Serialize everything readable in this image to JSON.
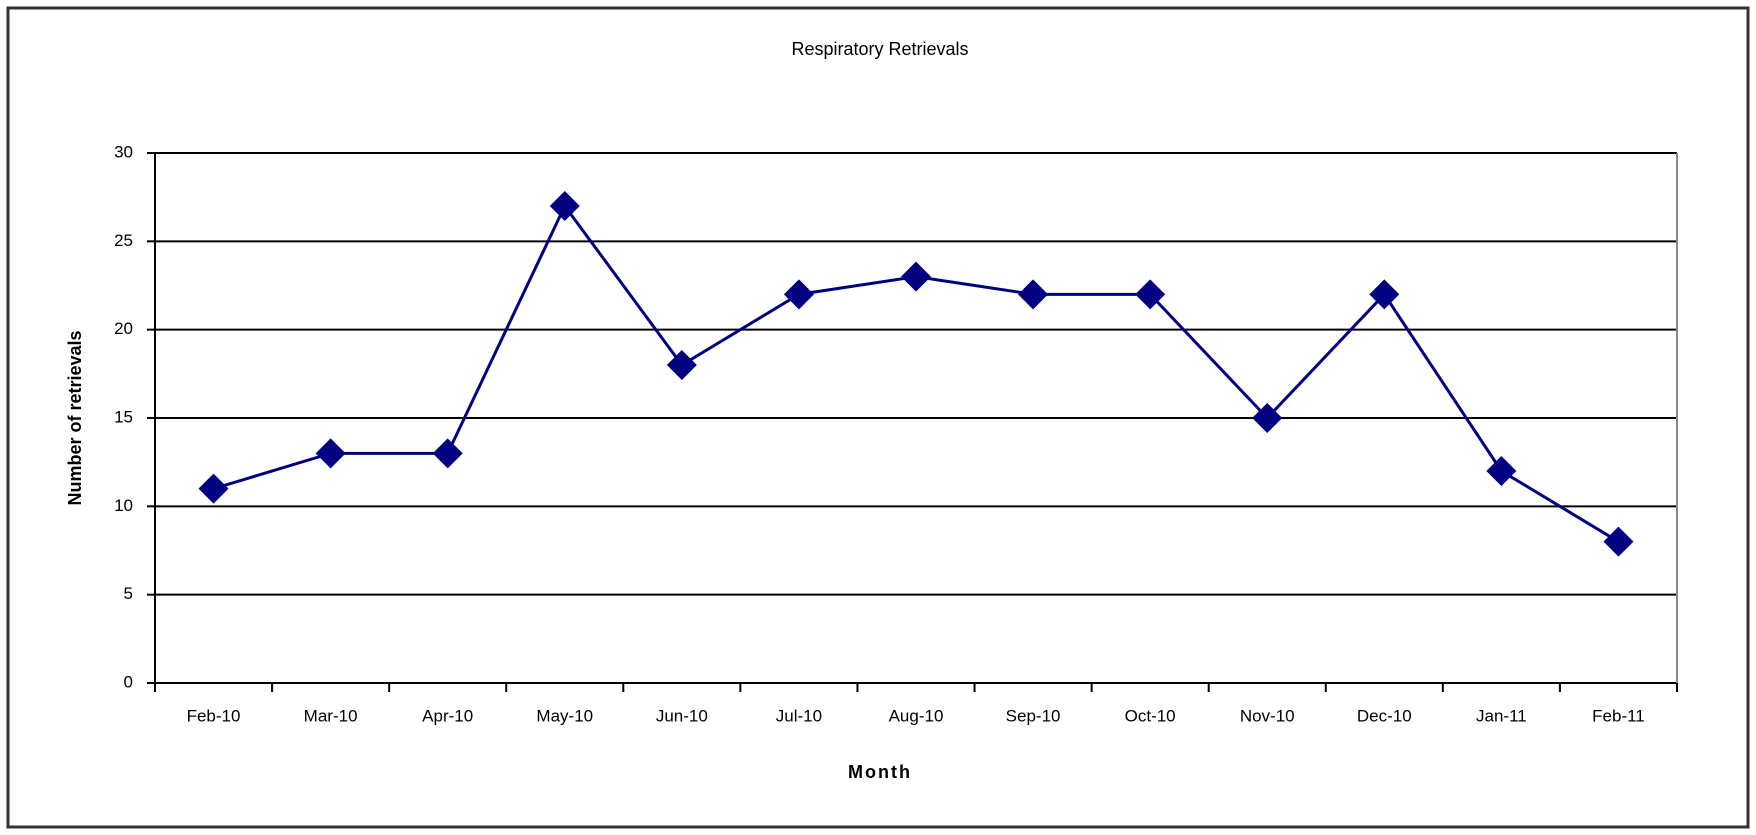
{
  "chart_data": {
    "type": "line",
    "title": "Respiratory Retrievals",
    "x_label": "Month",
    "y_label": "Number of retrievals",
    "categories": [
      "Feb-10",
      "Mar-10",
      "Apr-10",
      "May-10",
      "Jun-10",
      "Jul-10",
      "Aug-10",
      "Sep-10",
      "Oct-10",
      "Nov-10",
      "Dec-10",
      "Jan-11",
      "Feb-11"
    ],
    "series": [
      {
        "name": "Respiratory Retrievals",
        "color": "#000080",
        "values": [
          11,
          13,
          13,
          27,
          18,
          22,
          23,
          22,
          22,
          15,
          22,
          12,
          8
        ]
      }
    ],
    "ylim": [
      0,
      30
    ],
    "yticks": [
      0,
      5,
      10,
      15,
      20,
      25,
      30
    ],
    "grid": true
  }
}
